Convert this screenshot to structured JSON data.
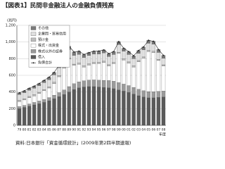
{
  "chart_data": {
    "type": "bar",
    "stacked": true,
    "title": "【図表1】民間非金融法人の金融負債残高",
    "y_label": "(兆円)",
    "x_label": "年度",
    "source": "資料:日本銀行「資金循環統計」(2009年第2四半期速報)",
    "categories": [
      "79",
      "80",
      "81",
      "82",
      "83",
      "84",
      "85",
      "86",
      "87",
      "88",
      "89",
      "90",
      "91",
      "92",
      "93",
      "94",
      "95",
      "96",
      "97",
      "98",
      "99",
      "00",
      "01",
      "02",
      "03",
      "04",
      "05",
      "06",
      "07",
      "08"
    ],
    "series": [
      {
        "name": "借入",
        "color": "#5a5a5a",
        "values": [
          200,
          215,
          230,
          245,
          260,
          275,
          295,
          320,
          345,
          370,
          400,
          430,
          450,
          460,
          465,
          465,
          460,
          455,
          450,
          440,
          425,
          410,
          395,
          375,
          355,
          340,
          330,
          330,
          335,
          340
        ]
      },
      {
        "name": "株式以外の証券",
        "color": "#9a9a9a",
        "values": [
          25,
          25,
          27,
          30,
          32,
          35,
          38,
          42,
          48,
          55,
          65,
          70,
          72,
          75,
          78,
          80,
          82,
          85,
          88,
          90,
          88,
          85,
          82,
          80,
          78,
          76,
          75,
          74,
          73,
          72
        ]
      },
      {
        "name": "株式・出資金",
        "color": "#ffffff",
        "values": [
          60,
          65,
          75,
          78,
          90,
          105,
          115,
          140,
          190,
          260,
          330,
          220,
          210,
          165,
          180,
          195,
          200,
          215,
          175,
          210,
          350,
          290,
          270,
          245,
          330,
          390,
          480,
          470,
          370,
          300
        ]
      },
      {
        "name": "預け金",
        "color": "#bdbdbd",
        "values": [
          15,
          15,
          15,
          15,
          15,
          15,
          15,
          15,
          15,
          15,
          15,
          15,
          15,
          15,
          15,
          15,
          15,
          15,
          15,
          15,
          15,
          15,
          15,
          15,
          15,
          15,
          15,
          15,
          15,
          15
        ]
      },
      {
        "name": "企業間・貿易信用",
        "color": "#e0e0e0",
        "values": [
          70,
          72,
          75,
          77,
          80,
          82,
          85,
          88,
          92,
          95,
          100,
          105,
          105,
          100,
          100,
          100,
          100,
          100,
          98,
          95,
          92,
          90,
          88,
          85,
          85,
          85,
          85,
          85,
          82,
          78
        ]
      },
      {
        "name": "その他",
        "color": "#7a7a7a",
        "values": [
          20,
          22,
          23,
          25,
          25,
          28,
          30,
          30,
          32,
          35,
          40,
          40,
          38,
          35,
          35,
          35,
          35,
          35,
          35,
          35,
          35,
          35,
          35,
          35,
          35,
          35,
          35,
          35,
          35,
          35
        ]
      }
    ],
    "total": {
      "name": "負債合計",
      "color": "#222222",
      "values": [
        390,
        414,
        445,
        470,
        502,
        540,
        578,
        635,
        722,
        830,
        950,
        880,
        890,
        850,
        873,
        890,
        892,
        905,
        861,
        885,
        1005,
        925,
        885,
        835,
        898,
        941,
        1020,
        1009,
        910,
        840
      ]
    },
    "ylim": [
      0,
      1200
    ],
    "yticks": [
      0,
      200,
      400,
      600,
      800,
      {
        "value": 1000,
        "label": "1,000"
      },
      {
        "value": 1200,
        "label": "1,200"
      }
    ],
    "grid": true
  }
}
